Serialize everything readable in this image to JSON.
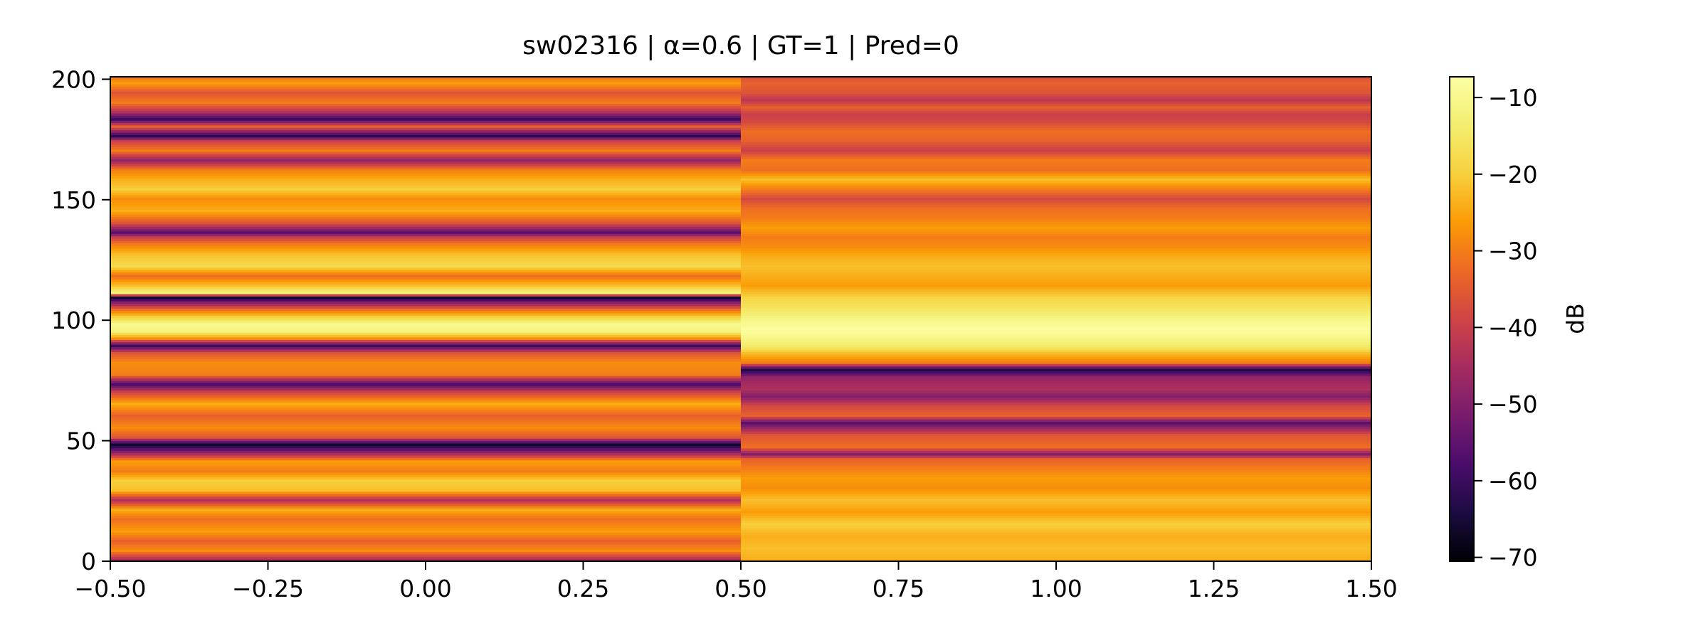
{
  "chart_data": {
    "type": "heatmap",
    "title": "sw02316 | α=0.6 | GT=1 | Pred=0",
    "xlabel": "",
    "ylabel": "",
    "xlim": [
      -0.5,
      1.5
    ],
    "ylim": [
      0,
      201
    ],
    "x_ticks": [
      -0.5,
      -0.25,
      0.0,
      0.25,
      0.5,
      0.75,
      1.0,
      1.25,
      1.5
    ],
    "x_tick_labels": [
      "−0.50",
      "−0.25",
      "0.00",
      "0.25",
      "0.50",
      "0.75",
      "1.00",
      "1.25",
      "1.50"
    ],
    "y_ticks": [
      0,
      50,
      100,
      150,
      200
    ],
    "y_tick_labels": [
      "0",
      "50",
      "100",
      "150",
      "200"
    ],
    "columns": [
      -0.5,
      0.5,
      1.5
    ],
    "colormap": "inferno",
    "grid": false,
    "colorbar": {
      "label": "dB",
      "range": [
        -70.5,
        -7.3
      ],
      "ticks": [
        -10,
        -20,
        -30,
        -40,
        -50,
        -60,
        -70
      ],
      "tick_labels": [
        "−10",
        "−20",
        "−30",
        "−40",
        "−50",
        "−60",
        "−70"
      ]
    },
    "bins": 201,
    "column_0_db_profile": [
      [
        0,
        -46
      ],
      [
        4,
        -28
      ],
      [
        8,
        -34
      ],
      [
        12,
        -26
      ],
      [
        17,
        -32
      ],
      [
        21,
        -24
      ],
      [
        25,
        -44
      ],
      [
        29,
        -22
      ],
      [
        33,
        -20
      ],
      [
        37,
        -30
      ],
      [
        41,
        -26
      ],
      [
        45,
        -50
      ],
      [
        48,
        -66
      ],
      [
        51,
        -36
      ],
      [
        55,
        -28
      ],
      [
        60,
        -34
      ],
      [
        65,
        -24
      ],
      [
        70,
        -40
      ],
      [
        73,
        -58
      ],
      [
        77,
        -30
      ],
      [
        82,
        -28
      ],
      [
        86,
        -36
      ],
      [
        89,
        -60
      ],
      [
        92,
        -28
      ],
      [
        95,
        -12
      ],
      [
        98,
        -10
      ],
      [
        101,
        -20
      ],
      [
        104,
        -32
      ],
      [
        107,
        -50
      ],
      [
        109,
        -66
      ],
      [
        111,
        -12
      ],
      [
        114,
        -22
      ],
      [
        118,
        -32
      ],
      [
        122,
        -18
      ],
      [
        127,
        -22
      ],
      [
        131,
        -30
      ],
      [
        134,
        -40
      ],
      [
        136,
        -56
      ],
      [
        140,
        -36
      ],
      [
        145,
        -24
      ],
      [
        150,
        -28
      ],
      [
        154,
        -20
      ],
      [
        158,
        -24
      ],
      [
        162,
        -30
      ],
      [
        166,
        -48
      ],
      [
        170,
        -30
      ],
      [
        174,
        -40
      ],
      [
        176,
        -62
      ],
      [
        180,
        -34
      ],
      [
        183,
        -60
      ],
      [
        186,
        -44
      ],
      [
        190,
        -30
      ],
      [
        194,
        -36
      ],
      [
        198,
        -26
      ],
      [
        200,
        -30
      ]
    ],
    "column_1_db_profile": [
      [
        0,
        -24
      ],
      [
        5,
        -22
      ],
      [
        10,
        -24
      ],
      [
        15,
        -20
      ],
      [
        20,
        -26
      ],
      [
        25,
        -22
      ],
      [
        30,
        -28
      ],
      [
        34,
        -26
      ],
      [
        38,
        -30
      ],
      [
        42,
        -34
      ],
      [
        44,
        -50
      ],
      [
        47,
        -32
      ],
      [
        52,
        -36
      ],
      [
        57,
        -56
      ],
      [
        60,
        -34
      ],
      [
        64,
        -38
      ],
      [
        68,
        -50
      ],
      [
        71,
        -44
      ],
      [
        74,
        -46
      ],
      [
        76,
        -48
      ],
      [
        79,
        -64
      ],
      [
        82,
        -30
      ],
      [
        86,
        -22
      ],
      [
        88,
        -16
      ],
      [
        91,
        -12
      ],
      [
        94,
        -9
      ],
      [
        96,
        -8
      ],
      [
        99,
        -10
      ],
      [
        102,
        -13
      ],
      [
        105,
        -16
      ],
      [
        108,
        -18
      ],
      [
        111,
        -22
      ],
      [
        114,
        -26
      ],
      [
        118,
        -24
      ],
      [
        122,
        -22
      ],
      [
        126,
        -24
      ],
      [
        130,
        -28
      ],
      [
        134,
        -30
      ],
      [
        138,
        -26
      ],
      [
        142,
        -30
      ],
      [
        146,
        -32
      ],
      [
        150,
        -38
      ],
      [
        154,
        -30
      ],
      [
        158,
        -22
      ],
      [
        162,
        -32
      ],
      [
        166,
        -30
      ],
      [
        170,
        -40
      ],
      [
        174,
        -34
      ],
      [
        178,
        -32
      ],
      [
        182,
        -38
      ],
      [
        185,
        -40
      ],
      [
        188,
        -34
      ],
      [
        191,
        -42
      ],
      [
        194,
        -36
      ],
      [
        198,
        -34
      ],
      [
        200,
        -36
      ]
    ]
  }
}
